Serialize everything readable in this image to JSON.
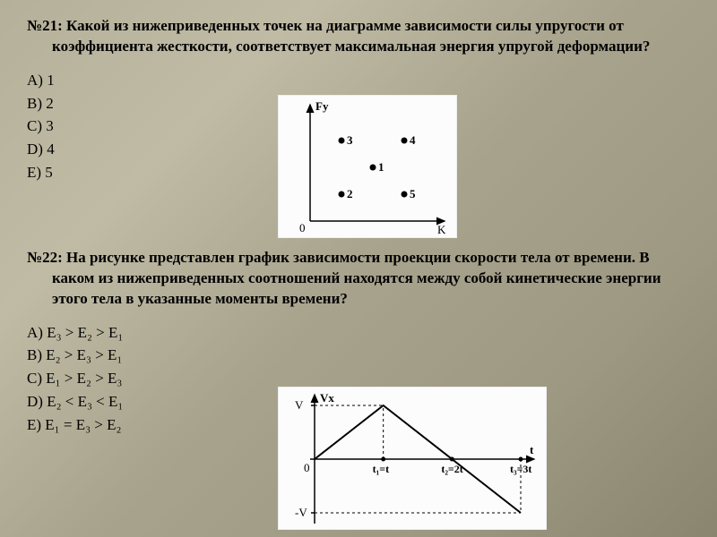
{
  "q21": {
    "number": "№21:",
    "text": "Какой из нижеприведенных точек на диаграмме зависимости силы упругости от коэффициента жесткости, соответствует максимальная энергия упругой деформации?",
    "options": [
      "A)  1",
      "B)  2",
      "C)  3",
      "D)  4",
      "E)  5"
    ],
    "chart": {
      "type": "scatter",
      "xlabel": "K",
      "ylabel": "Fу",
      "background_color": "#fcfcfc",
      "axis_color": "#000000",
      "point_color": "#000000",
      "point_radius": 3.5,
      "label_fontsize": 13,
      "xrange": [
        0,
        10
      ],
      "yrange": [
        0,
        10
      ],
      "points": [
        {
          "id": "1",
          "x": 5,
          "y": 5
        },
        {
          "id": "2",
          "x": 2.5,
          "y": 2.5
        },
        {
          "id": "3",
          "x": 2.5,
          "y": 7.5
        },
        {
          "id": "4",
          "x": 7.5,
          "y": 7.5
        },
        {
          "id": "5",
          "x": 7.5,
          "y": 2.5
        }
      ]
    }
  },
  "q22": {
    "number": "№22:",
    "text": "На рисунке представлен график зависимости проекции скорости тела от времени. В каком из нижеприведенных соотношений находятся между собой кинетические энергии этого тела в указанные моменты времени?",
    "options": [
      "A)  E₃ > E₂ > E₁",
      "B)  E₂ > E₃ > E₁",
      "C)  E₁ > E₂ > E₃",
      "D)  E₂ < E₃ < E₁",
      "E)  E₁ = E₃ > E₂"
    ],
    "chart": {
      "type": "line",
      "xlabel": "t",
      "ylabel": "Vx",
      "background_color": "#fcfcfc",
      "axis_color": "#000000",
      "line_color": "#000000",
      "line_width": 2,
      "dash_color": "#000000",
      "dash_pattern": "3,3",
      "label_fontsize": 13,
      "yticks": [
        {
          "y": 1,
          "label": "V"
        },
        {
          "y": -1,
          "label": "-V"
        }
      ],
      "xticks": [
        {
          "x": 1,
          "label": "t₁=t"
        },
        {
          "x": 2,
          "label": "t₂=2t"
        },
        {
          "x": 3,
          "label": "t₃=3t"
        }
      ],
      "points": [
        {
          "x": 0,
          "y": 0
        },
        {
          "x": 1,
          "y": 1
        },
        {
          "x": 3,
          "y": -1
        }
      ]
    }
  }
}
